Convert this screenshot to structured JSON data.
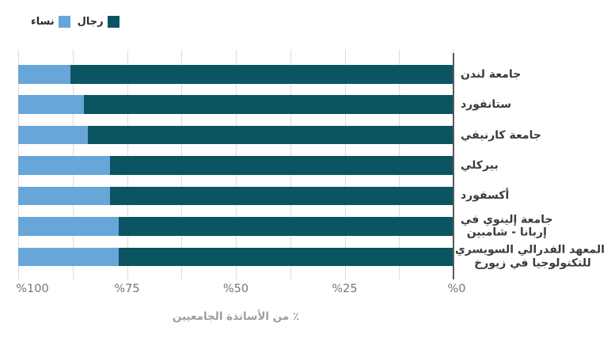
{
  "legend": {
    "items": [
      {
        "label": "رجال",
        "color": "#0b5562"
      },
      {
        "label": "نساء",
        "color": "#68a5d9"
      }
    ]
  },
  "chart_data": {
    "type": "bar",
    "orientation": "horizontal",
    "stacked": true,
    "value_axis_reversed": true,
    "title": "",
    "xlabel": "٪ من الأساتذة الجامعيين",
    "xlim": [
      100,
      0
    ],
    "grid": true,
    "gridline_step": 12.5,
    "legend_position": "top-left",
    "x_ticks": [
      {
        "label": "%100",
        "value": 100
      },
      {
        "label": "%75",
        "value": 75
      },
      {
        "label": "%50",
        "value": 50
      },
      {
        "label": "%25",
        "value": 25
      },
      {
        "label": "%0",
        "value": 0
      }
    ],
    "categories": [
      {
        "lines": [
          "جامعة لندن"
        ]
      },
      {
        "lines": [
          "ستانفورد"
        ]
      },
      {
        "lines": [
          "جامعة كارنيفي"
        ]
      },
      {
        "lines": [
          "بيركلي"
        ]
      },
      {
        "lines": [
          "أكسفورد"
        ]
      },
      {
        "lines": [
          "جامعة إلينوي في",
          "إربانا - شامبين"
        ]
      },
      {
        "lines": [
          "المعهد الفدرالي السويسري",
          "للتكنولوجيا في زيورخ"
        ]
      }
    ],
    "series": [
      {
        "name": "نساء",
        "color": "#68a5d9",
        "values": [
          12,
          15,
          16,
          21,
          21,
          23,
          23
        ]
      },
      {
        "name": "رجال",
        "color": "#0b5562",
        "values": [
          88,
          85,
          84,
          79,
          79,
          77,
          77
        ]
      }
    ]
  }
}
